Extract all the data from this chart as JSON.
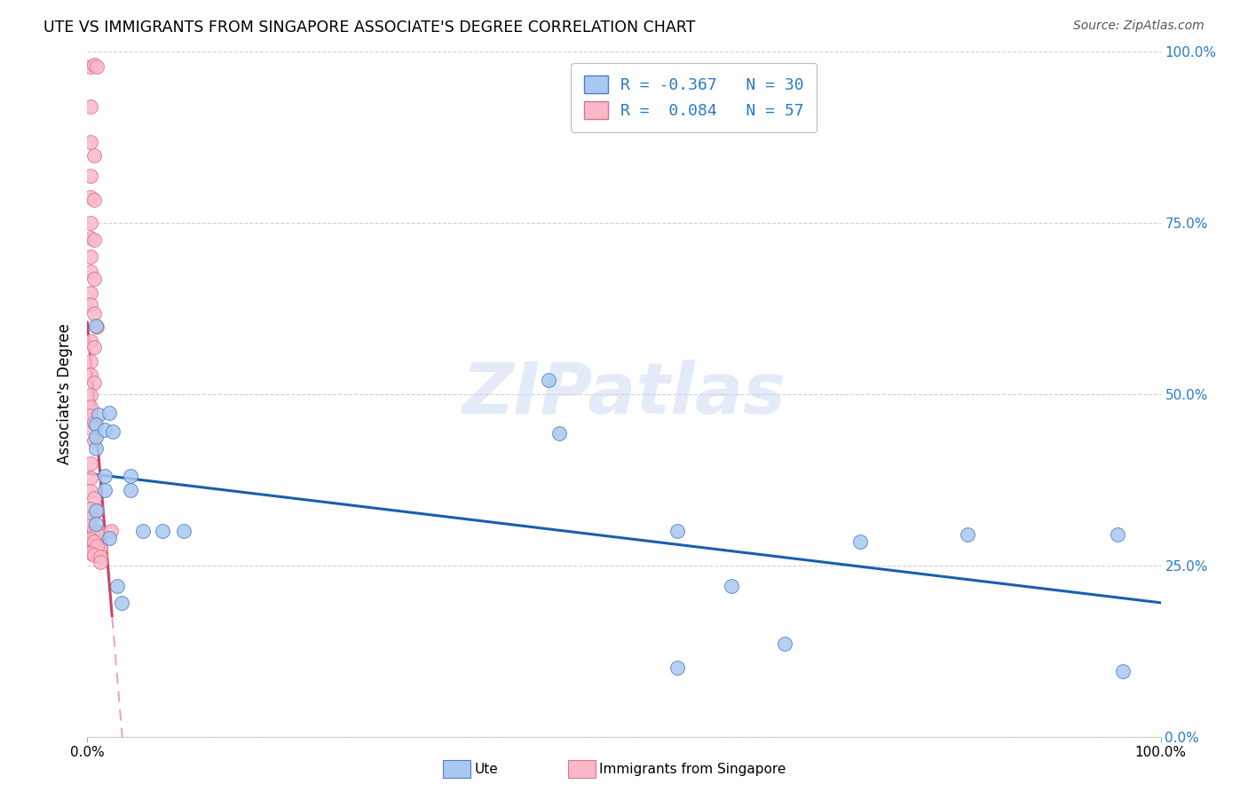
{
  "title": "UTE VS IMMIGRANTS FROM SINGAPORE ASSOCIATE'S DEGREE CORRELATION CHART",
  "source": "Source: ZipAtlas.com",
  "ylabel": "Associate's Degree",
  "xlim": [
    0.0,
    1.0
  ],
  "ylim": [
    0.0,
    1.0
  ],
  "ytick_values": [
    0.0,
    0.25,
    0.5,
    0.75,
    1.0
  ],
  "ytick_labels": [
    "0.0%",
    "25.0%",
    "50.0%",
    "75.0%",
    "100.0%"
  ],
  "watermark_text": "ZIPatlas",
  "legend_line1": "R = -0.367   N = 30",
  "legend_line2": "R =  0.084   N = 57",
  "blue_fill": "#a8c8f0",
  "blue_edge": "#5080c0",
  "pink_fill": "#f8b8c8",
  "pink_edge": "#e07090",
  "trend_blue": "#1a5fac",
  "trend_pink_solid": "#d04060",
  "trend_pink_dash": "#e8a8b8",
  "text_blue": "#2979c8",
  "ute_points": [
    [
      0.008,
      0.6
    ],
    [
      0.01,
      0.47
    ],
    [
      0.02,
      0.472
    ],
    [
      0.008,
      0.42
    ],
    [
      0.008,
      0.455
    ],
    [
      0.008,
      0.438
    ],
    [
      0.016,
      0.448
    ],
    [
      0.024,
      0.445
    ],
    [
      0.016,
      0.38
    ],
    [
      0.016,
      0.36
    ],
    [
      0.02,
      0.29
    ],
    [
      0.028,
      0.22
    ],
    [
      0.032,
      0.195
    ],
    [
      0.04,
      0.38
    ],
    [
      0.04,
      0.36
    ],
    [
      0.052,
      0.3
    ],
    [
      0.07,
      0.3
    ],
    [
      0.09,
      0.3
    ],
    [
      0.43,
      0.52
    ],
    [
      0.44,
      0.443
    ],
    [
      0.55,
      0.3
    ],
    [
      0.55,
      0.1
    ],
    [
      0.6,
      0.22
    ],
    [
      0.65,
      0.135
    ],
    [
      0.72,
      0.285
    ],
    [
      0.82,
      0.295
    ],
    [
      0.96,
      0.295
    ],
    [
      0.965,
      0.095
    ],
    [
      0.008,
      0.33
    ],
    [
      0.008,
      0.31
    ]
  ],
  "singapore_points": [
    [
      0.003,
      0.978
    ],
    [
      0.006,
      0.98
    ],
    [
      0.009,
      0.978
    ],
    [
      0.003,
      0.92
    ],
    [
      0.003,
      0.868
    ],
    [
      0.006,
      0.848
    ],
    [
      0.003,
      0.818
    ],
    [
      0.003,
      0.788
    ],
    [
      0.006,
      0.783
    ],
    [
      0.003,
      0.75
    ],
    [
      0.003,
      0.728
    ],
    [
      0.006,
      0.725
    ],
    [
      0.003,
      0.7
    ],
    [
      0.003,
      0.678
    ],
    [
      0.006,
      0.668
    ],
    [
      0.003,
      0.648
    ],
    [
      0.003,
      0.63
    ],
    [
      0.006,
      0.618
    ],
    [
      0.009,
      0.598
    ],
    [
      0.003,
      0.578
    ],
    [
      0.006,
      0.568
    ],
    [
      0.003,
      0.548
    ],
    [
      0.003,
      0.528
    ],
    [
      0.006,
      0.516
    ],
    [
      0.003,
      0.498
    ],
    [
      0.003,
      0.475
    ],
    [
      0.003,
      0.45
    ],
    [
      0.006,
      0.432
    ],
    [
      0.003,
      0.398
    ],
    [
      0.003,
      0.378
    ],
    [
      0.003,
      0.358
    ],
    [
      0.006,
      0.348
    ],
    [
      0.009,
      0.33
    ],
    [
      0.003,
      0.32
    ],
    [
      0.003,
      0.298
    ],
    [
      0.003,
      0.28
    ],
    [
      0.006,
      0.276
    ],
    [
      0.009,
      0.272
    ],
    [
      0.012,
      0.28
    ],
    [
      0.012,
      0.275
    ],
    [
      0.012,
      0.298
    ],
    [
      0.022,
      0.3
    ],
    [
      0.003,
      0.482
    ],
    [
      0.003,
      0.468
    ],
    [
      0.006,
      0.458
    ],
    [
      0.003,
      0.332
    ],
    [
      0.003,
      0.32
    ],
    [
      0.003,
      0.308
    ],
    [
      0.006,
      0.3
    ],
    [
      0.009,
      0.298
    ],
    [
      0.003,
      0.288
    ],
    [
      0.006,
      0.285
    ],
    [
      0.009,
      0.278
    ],
    [
      0.003,
      0.268
    ],
    [
      0.006,
      0.265
    ],
    [
      0.012,
      0.262
    ],
    [
      0.012,
      0.255
    ]
  ]
}
